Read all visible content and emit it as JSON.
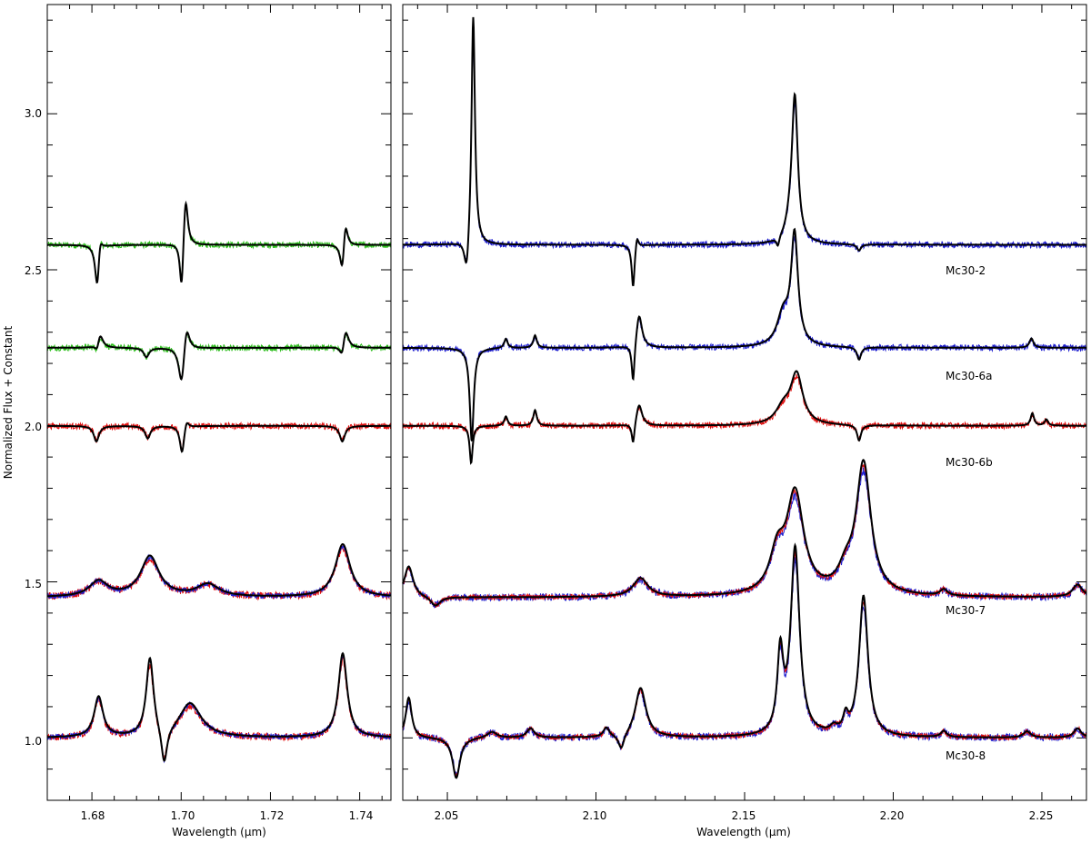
{
  "figure": {
    "ylabel": "Normalized Flux + Constant",
    "colors": {
      "model": "#000000",
      "obs_green": "#2fbf1f",
      "obs_red": "#e01010",
      "obs_blue": "#2020d0"
    }
  },
  "chart_data": [
    {
      "type": "line",
      "panel": "left",
      "xlabel": "Wavelength (μm)",
      "ylabel": "Normalized Flux + Constant",
      "xlim": [
        1.67,
        1.747
      ],
      "ylim": [
        0.8,
        3.35
      ],
      "x_ticks": [
        "1.68",
        "1.70",
        "1.72",
        "1.74"
      ],
      "y_ticks": [
        "1.0",
        "1.5",
        "2.0",
        "2.5",
        "3.0"
      ],
      "series": [
        {
          "star": "Mc30-2",
          "offset": 2.58,
          "features": [
            {
              "x": 1.6812,
              "a": -0.15,
              "w": 0.0006
            },
            {
              "x": 1.6818,
              "a": 0.06,
              "w": 0.0006
            },
            {
              "x": 1.7001,
              "a": -0.17,
              "w": 0.0005
            },
            {
              "x": 1.701,
              "a": 0.17,
              "w": 0.0006
            },
            {
              "x": 1.7361,
              "a": -0.1,
              "w": 0.0006
            },
            {
              "x": 1.7368,
              "a": 0.09,
              "w": 0.0006
            }
          ]
        },
        {
          "star": "Mc30-6a",
          "offset": 2.25,
          "features": [
            {
              "x": 1.6812,
              "a": -0.03,
              "w": 0.0006
            },
            {
              "x": 1.6818,
              "a": 0.05,
              "w": 0.0008
            },
            {
              "x": 1.6922,
              "a": -0.03,
              "w": 0.0007
            },
            {
              "x": 1.7001,
              "a": -0.13,
              "w": 0.0008
            },
            {
              "x": 1.7012,
              "a": 0.09,
              "w": 0.0008
            },
            {
              "x": 1.7361,
              "a": -0.05,
              "w": 0.0007
            },
            {
              "x": 1.7368,
              "a": 0.07,
              "w": 0.0008
            }
          ]
        },
        {
          "star": "Mc30-6b",
          "offset": 2.0,
          "features": [
            {
              "x": 1.681,
              "a": -0.05,
              "w": 0.0007
            },
            {
              "x": 1.6925,
              "a": -0.04,
              "w": 0.0007
            },
            {
              "x": 1.7002,
              "a": -0.09,
              "w": 0.0006
            },
            {
              "x": 1.7012,
              "a": 0.03,
              "w": 0.0006
            },
            {
              "x": 1.7361,
              "a": -0.05,
              "w": 0.0007
            }
          ]
        },
        {
          "star": "Mc30-7",
          "offset": 1.45,
          "features": [
            {
              "x": 1.6815,
              "a": 0.05,
              "w": 0.0025
            },
            {
              "x": 1.693,
              "a": 0.13,
              "w": 0.0025
            },
            {
              "x": 1.706,
              "a": 0.04,
              "w": 0.003
            },
            {
              "x": 1.7362,
              "a": 0.17,
              "w": 0.002
            }
          ]
        },
        {
          "star": "Mc30-8",
          "offset": 1.0,
          "features": [
            {
              "x": 1.6815,
              "a": 0.13,
              "w": 0.0012
            },
            {
              "x": 1.693,
              "a": 0.25,
              "w": 0.001
            },
            {
              "x": 1.6962,
              "a": -0.12,
              "w": 0.0008
            },
            {
              "x": 1.702,
              "a": 0.11,
              "w": 0.003
            },
            {
              "x": 1.7362,
              "a": 0.27,
              "w": 0.0012
            }
          ]
        }
      ]
    },
    {
      "type": "line",
      "panel": "right",
      "xlabel": "Wavelength (μm)",
      "xlim": [
        2.035,
        2.265
      ],
      "ylim": [
        0.8,
        3.35
      ],
      "x_ticks": [
        "2.05",
        "2.10",
        "2.15",
        "2.20",
        "2.25"
      ],
      "series": [
        {
          "name": "Mc30-2",
          "offset": 2.58,
          "features": [
            {
              "x": 2.0565,
              "a": -0.12,
              "w": 0.001
            },
            {
              "x": 2.0587,
              "a": 0.75,
              "w": 0.0007
            },
            {
              "x": 2.1125,
              "a": -0.14,
              "w": 0.0006
            },
            {
              "x": 2.1138,
              "a": 0.04,
              "w": 0.0006
            },
            {
              "x": 2.1612,
              "a": -0.03,
              "w": 0.0006
            },
            {
              "x": 2.1655,
              "a": 0.05,
              "w": 0.002
            },
            {
              "x": 2.1669,
              "a": 0.45,
              "w": 0.0012
            },
            {
              "x": 2.1885,
              "a": -0.02,
              "w": 0.0008
            }
          ]
        },
        {
          "name": "Mc30-6a",
          "offset": 2.25,
          "features": [
            {
              "x": 2.0582,
              "a": -0.3,
              "w": 0.0008
            },
            {
              "x": 2.0697,
              "a": 0.03,
              "w": 0.0007
            },
            {
              "x": 2.0795,
              "a": 0.04,
              "w": 0.0007
            },
            {
              "x": 2.1125,
              "a": -0.13,
              "w": 0.0006
            },
            {
              "x": 2.1145,
              "a": 0.11,
              "w": 0.0012
            },
            {
              "x": 2.163,
              "a": 0.1,
              "w": 0.0025
            },
            {
              "x": 2.1668,
              "a": 0.35,
              "w": 0.0014
            },
            {
              "x": 2.1885,
              "a": -0.04,
              "w": 0.0008
            },
            {
              "x": 2.2465,
              "a": 0.03,
              "w": 0.0008
            }
          ]
        },
        {
          "name": "Mc30-6b",
          "offset": 2.0,
          "features": [
            {
              "x": 2.058,
              "a": -0.12,
              "w": 0.0006
            },
            {
              "x": 2.0697,
              "a": 0.03,
              "w": 0.0007
            },
            {
              "x": 2.0795,
              "a": 0.05,
              "w": 0.0007
            },
            {
              "x": 2.1125,
              "a": -0.07,
              "w": 0.0006
            },
            {
              "x": 2.1145,
              "a": 0.07,
              "w": 0.0012
            },
            {
              "x": 2.163,
              "a": 0.05,
              "w": 0.003
            },
            {
              "x": 2.1675,
              "a": 0.16,
              "w": 0.0025
            },
            {
              "x": 2.1885,
              "a": -0.05,
              "w": 0.0008
            },
            {
              "x": 2.2468,
              "a": 0.04,
              "w": 0.0007
            },
            {
              "x": 2.2515,
              "a": 0.02,
              "w": 0.0007
            }
          ]
        },
        {
          "name": "Mc30-7",
          "offset": 1.45,
          "features": [
            {
              "x": 2.037,
              "a": 0.1,
              "w": 0.0018
            },
            {
              "x": 2.046,
              "a": -0.03,
              "w": 0.002
            },
            {
              "x": 2.115,
              "a": 0.06,
              "w": 0.003
            },
            {
              "x": 2.161,
              "a": 0.12,
              "w": 0.003
            },
            {
              "x": 2.167,
              "a": 0.32,
              "w": 0.0035
            },
            {
              "x": 2.19,
              "a": 0.42,
              "w": 0.003
            },
            {
              "x": 2.184,
              "a": 0.06,
              "w": 0.003
            },
            {
              "x": 2.217,
              "a": 0.02,
              "w": 0.0015
            },
            {
              "x": 2.262,
              "a": 0.04,
              "w": 0.002
            }
          ]
        },
        {
          "name": "Mc30-8",
          "offset": 1.0,
          "features": [
            {
              "x": 2.037,
              "a": 0.13,
              "w": 0.0012
            },
            {
              "x": 2.053,
              "a": -0.13,
              "w": 0.0015
            },
            {
              "x": 2.065,
              "a": 0.02,
              "w": 0.002
            },
            {
              "x": 2.078,
              "a": 0.03,
              "w": 0.0015
            },
            {
              "x": 2.1035,
              "a": 0.03,
              "w": 0.0012
            },
            {
              "x": 2.1085,
              "a": -0.05,
              "w": 0.0012
            },
            {
              "x": 2.115,
              "a": 0.16,
              "w": 0.0022
            },
            {
              "x": 2.162,
              "a": 0.25,
              "w": 0.0012
            },
            {
              "x": 2.167,
              "a": 0.6,
              "w": 0.0018
            },
            {
              "x": 2.18,
              "a": 0.02,
              "w": 0.0015
            },
            {
              "x": 2.184,
              "a": 0.05,
              "w": 0.001
            },
            {
              "x": 2.19,
              "a": 0.45,
              "w": 0.0018
            },
            {
              "x": 2.217,
              "a": 0.02,
              "w": 0.0012
            },
            {
              "x": 2.245,
              "a": 0.02,
              "w": 0.0015
            },
            {
              "x": 2.262,
              "a": 0.03,
              "w": 0.0015
            }
          ]
        }
      ]
    }
  ]
}
